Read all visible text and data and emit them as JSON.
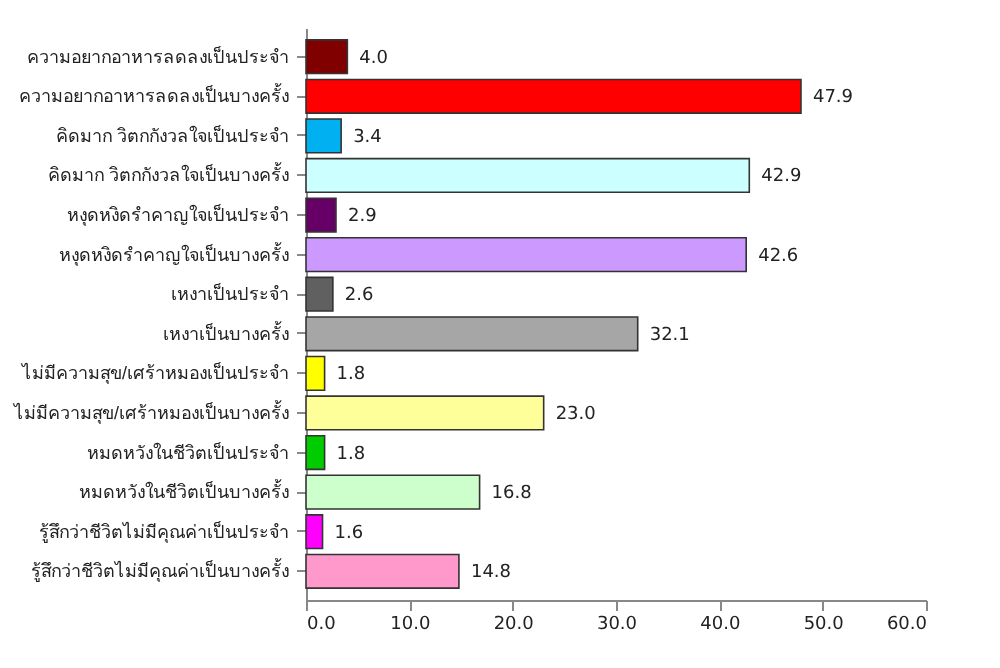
{
  "chart_data": {
    "type": "bar",
    "orientation": "horizontal",
    "categories": [
      "ความอยากอาหารลดลงเป็นประจำ",
      "ความอยากอาหารลดลงเป็นบางครั้ง",
      "คิดมาก วิตกกังวลใจเป็นประจำ",
      "คิดมาก วิตกกังวลใจเป็นบางครั้ง",
      "หงุดหงิดรำคาญใจเป็นประจำ",
      "หงุดหงิดรำคาญใจเป็นบางครั้ง",
      "เหงาเป็นประจำ",
      "เหงาเป็นบางครั้ง",
      "ไม่มีความสุข/เศร้าหมองเป็นประจำ",
      "ไม่มีความสุข/เศร้าหมองเป็นบางครั้ง",
      "หมดหวังในชีวิตเป็นประจำ",
      "หมดหวังในชีวิตเป็นบางครั้ง",
      "รู้สึกว่าชีวิตไม่มีคุณค่าเป็นประจำ",
      "รู้สึกว่าชีวิตไม่มีคุณค่าเป็นบางครั้ง"
    ],
    "values": [
      4.0,
      47.9,
      3.4,
      42.9,
      2.9,
      42.6,
      2.6,
      32.1,
      1.8,
      23.0,
      1.8,
      16.8,
      1.6,
      14.8
    ],
    "value_labels": [
      "4.0",
      "47.9",
      "3.4",
      "42.9",
      "2.9",
      "42.6",
      "2.6",
      "32.1",
      "1.8",
      "23.0",
      "1.8",
      "16.8",
      "1.6",
      "14.8"
    ],
    "colors": [
      "#800000",
      "#ff0000",
      "#00b0f0",
      "#ccffff",
      "#660066",
      "#cc99ff",
      "#606060",
      "#a6a6a6",
      "#ffff00",
      "#ffff99",
      "#00cc00",
      "#ccffcc",
      "#ff00ff",
      "#ff99cc"
    ],
    "xlim": [
      0,
      60
    ],
    "xticks": [
      {
        "value": 0,
        "label": "0.0"
      },
      {
        "value": 10,
        "label": "10.0"
      },
      {
        "value": 20,
        "label": "20.0"
      },
      {
        "value": 30,
        "label": "30.0"
      },
      {
        "value": 40,
        "label": "40.0"
      },
      {
        "value": 50,
        "label": "50.0"
      },
      {
        "value": 60,
        "label": "60.0"
      }
    ],
    "grid": false,
    "legend": false
  }
}
